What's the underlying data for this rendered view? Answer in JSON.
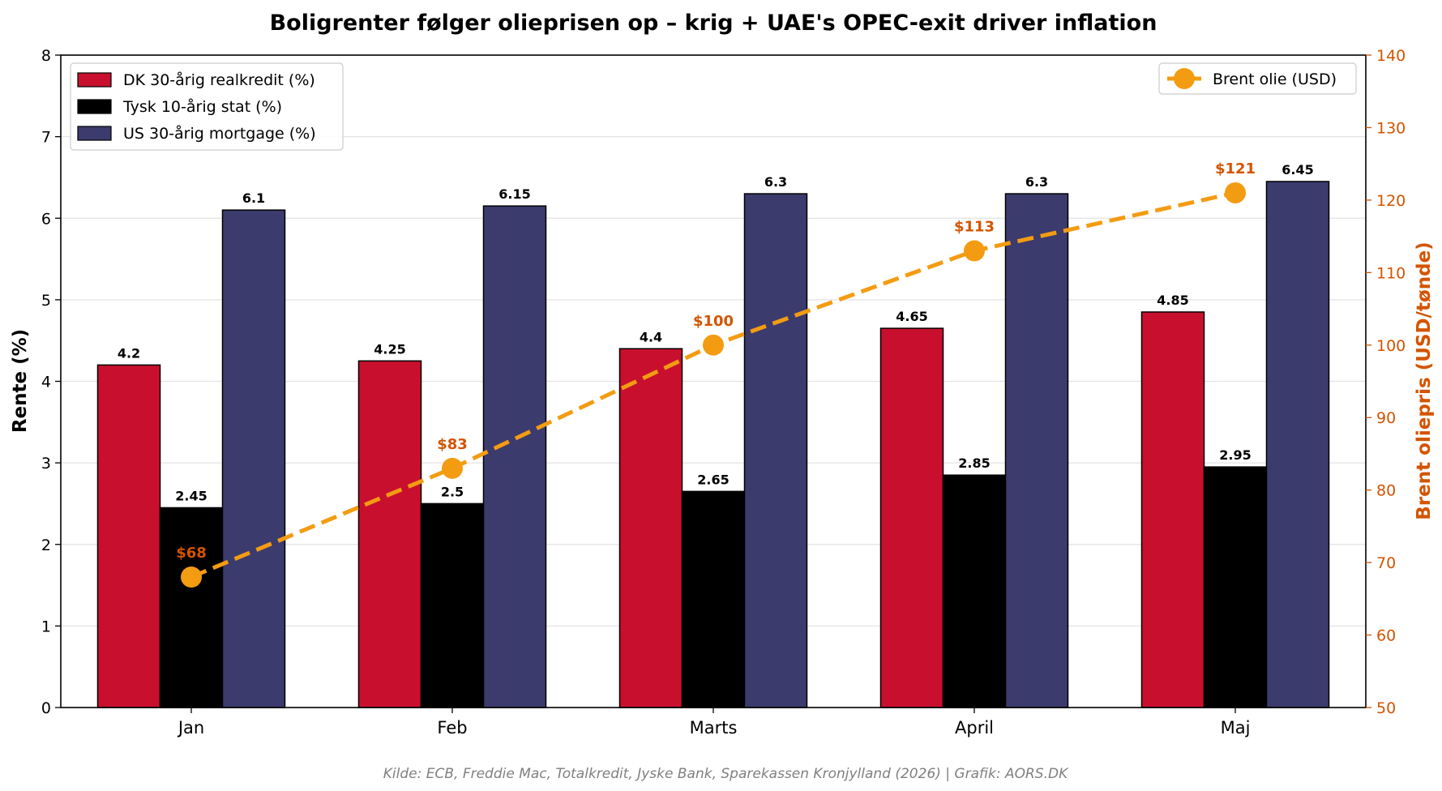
{
  "chart_data": {
    "type": "bar",
    "title": "Boligrenter følger olieprisen op – krig + UAE's OPEC-exit driver inflation",
    "categories": [
      "Jan",
      "Feb",
      "Marts",
      "April",
      "Maj"
    ],
    "ylabel": "Rente (%)",
    "ylabel_right": "Brent oliepris (USD/tønde)",
    "ylim": [
      0,
      8
    ],
    "ylim_right": [
      50,
      140
    ],
    "yticks": [
      "0",
      "1",
      "2",
      "3",
      "4",
      "5",
      "6",
      "7",
      "8"
    ],
    "yticks_right": [
      "50",
      "60",
      "70",
      "80",
      "90",
      "100",
      "110",
      "120",
      "130",
      "140"
    ],
    "grid": "horizontal",
    "series": [
      {
        "name": "DK 30-årig realkredit (%)",
        "color": "#c8102e",
        "values": [
          4.2,
          4.25,
          4.4,
          4.65,
          4.85
        ],
        "labels": [
          "4.2",
          "4.25",
          "4.4",
          "4.65",
          "4.85"
        ]
      },
      {
        "name": "Tysk 10-årig stat (%)",
        "color": "#000000",
        "values": [
          2.45,
          2.5,
          2.65,
          2.85,
          2.95
        ],
        "labels": [
          "2.45",
          "2.5",
          "2.65",
          "2.85",
          "2.95"
        ]
      },
      {
        "name": "US 30-årig mortgage (%)",
        "color": "#3c3b6e",
        "values": [
          6.1,
          6.15,
          6.3,
          6.3,
          6.45
        ],
        "labels": [
          "6.1",
          "6.15",
          "6.3",
          "6.3",
          "6.45"
        ]
      }
    ],
    "line_series": {
      "name": "Brent olie (USD)",
      "color": "#f39c12",
      "axis": "right",
      "values": [
        68,
        83,
        100,
        113,
        121
      ],
      "labels": [
        "$68",
        "$83",
        "$100",
        "$113",
        "$121"
      ]
    },
    "legend_left": "top-left",
    "legend_right": "top-right",
    "source": "Kilde: ECB, Freddie Mac, Totalkredit, Jyske Bank, Sparekassen Kronjylland (2026) | Grafik: AORS.DK"
  }
}
